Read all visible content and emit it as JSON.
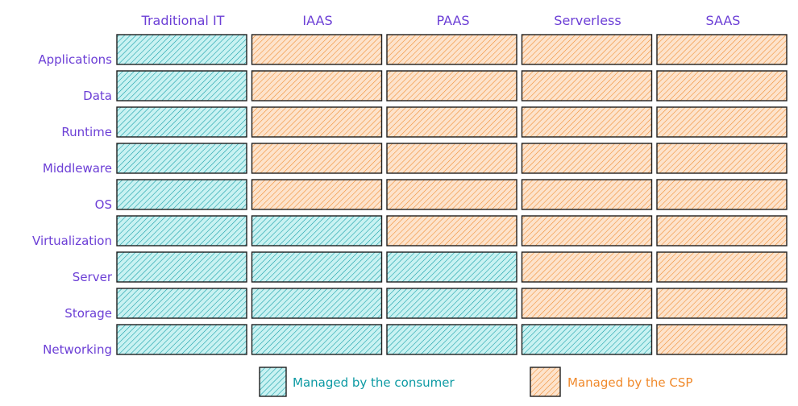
{
  "columns": [
    "Traditional IT",
    "IAAS",
    "PAAS",
    "Serverless",
    "SAAS"
  ],
  "rows": [
    "Applications",
    "Data",
    "Runtime",
    "Middleware",
    "OS",
    "Virtualization",
    "Server",
    "Storage",
    "Networking"
  ],
  "consumer_managed_layers_per_column": [
    9,
    4,
    3,
    1,
    0
  ],
  "legend": {
    "consumer": "Managed by the consumer",
    "csp": "Managed by the CSP"
  },
  "colors": {
    "consumer": "#0c9aa3",
    "consumer_fill": "#c9f2f2",
    "csp": "#f08a2c",
    "csp_fill": "#fde3cc",
    "label": "#6c3fd6",
    "outline": "#1e1e1e"
  }
}
